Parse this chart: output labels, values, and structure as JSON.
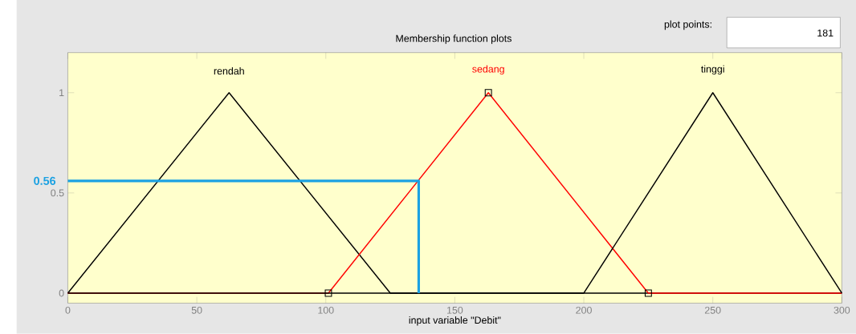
{
  "chart_data": {
    "type": "line",
    "title": "Membership function plots",
    "xlabel": "input variable \"Debit\"",
    "series": [
      {
        "name": "rendah",
        "color": "#000000",
        "x": [
          0,
          62.5,
          125,
          300
        ],
        "values": [
          0,
          1,
          0,
          0
        ]
      },
      {
        "name": "sedang",
        "color": "#ff0000",
        "x": [
          0,
          101,
          163,
          225,
          300
        ],
        "values": [
          0,
          0,
          1,
          0,
          0
        ]
      },
      {
        "name": "tinggi",
        "color": "#000000",
        "x": [
          0,
          200,
          250,
          300
        ],
        "values": [
          0,
          0,
          1,
          0
        ]
      },
      {
        "type": "scatter",
        "marker": "square",
        "color": "#000000",
        "x": [
          101,
          163,
          225
        ],
        "values": [
          0,
          1,
          0
        ]
      },
      {
        "color": "#1ba1e2",
        "x": [
          0,
          136,
          136
        ],
        "values": [
          0.56,
          0.56,
          0
        ]
      }
    ],
    "xlim": [
      0,
      300
    ],
    "ylim": [
      -0.05,
      1.2
    ],
    "xticks": [
      0,
      50,
      100,
      150,
      200,
      250,
      300
    ],
    "yticks": [
      0,
      0.5,
      1
    ],
    "annotations": [
      "plot points:",
      "181",
      {
        "text": "0.56",
        "x": 0,
        "y": 0.56
      }
    ],
    "grid": false
  }
}
